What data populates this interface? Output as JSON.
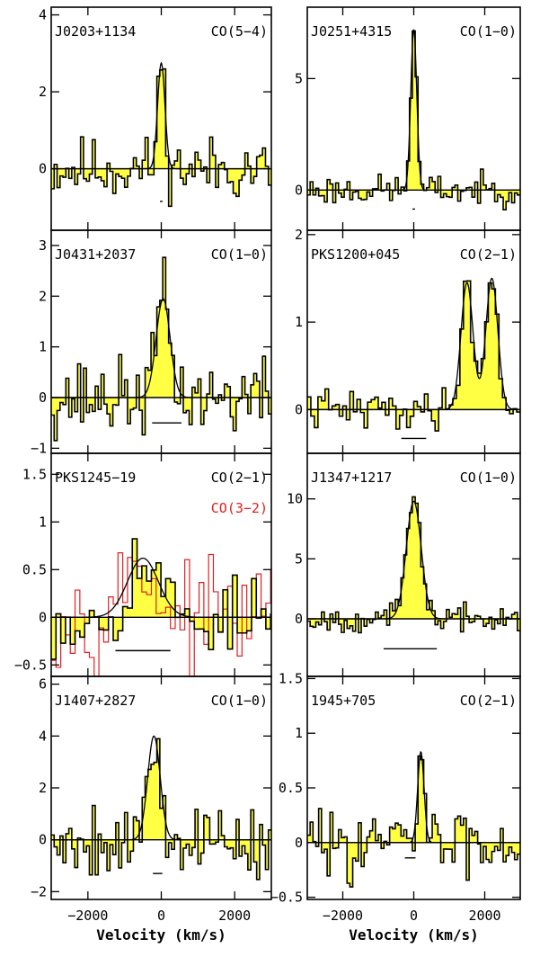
{
  "chart_data": [
    {
      "type": "area",
      "title": "J0203+1134",
      "line": "CO(5−4)",
      "xlim": [
        -3000,
        3000
      ],
      "ylim": [
        -1.6,
        4.2
      ],
      "yticks": [
        0,
        2,
        4
      ],
      "ytick_labels": [
        "0",
        "2",
        "4"
      ],
      "xticks": [
        -2000,
        0,
        2000
      ],
      "show_xtick_labels": false,
      "bin_width": 80,
      "fwhm_bar": {
        "x": 0,
        "y": -0.85,
        "half_width": 35
      },
      "gaussians": [
        {
          "amp": 2.75,
          "center": 0,
          "sigma": 100
        }
      ],
      "noise": 0.55,
      "seed": 11
    },
    {
      "type": "area",
      "title": "J0251+4315",
      "line": "CO(1−0)",
      "xlim": [
        -3000,
        3000
      ],
      "ylim": [
        -1.8,
        8.2
      ],
      "yticks": [
        0,
        5
      ],
      "ytick_labels": [
        "0",
        "5"
      ],
      "xticks": [
        -2000,
        0,
        2000
      ],
      "show_xtick_labels": false,
      "bin_width": 80,
      "fwhm_bar": {
        "x": 0,
        "y": -0.85,
        "half_width": 35
      },
      "gaussians": [
        {
          "amp": 7.2,
          "center": 0,
          "sigma": 85
        }
      ],
      "noise": 0.45,
      "seed": 23
    },
    {
      "type": "area",
      "title": "J0431+2037",
      "line": "CO(1−0)",
      "xlim": [
        -3000,
        3000
      ],
      "ylim": [
        -1.1,
        3.3
      ],
      "yticks": [
        -1,
        0,
        1,
        2,
        3
      ],
      "ytick_labels": [
        "−1",
        "0",
        "1",
        "2",
        "3"
      ],
      "xticks": [
        -2000,
        0,
        2000
      ],
      "show_xtick_labels": false,
      "bin_width": 80,
      "fwhm_bar": {
        "x": 150,
        "y": -0.5,
        "half_width": 400
      },
      "gaussians": [
        {
          "amp": 1.95,
          "center": 50,
          "sigma": 190
        }
      ],
      "noise": 0.5,
      "seed": 37
    },
    {
      "type": "area",
      "title": "PKS1200+045",
      "line": "CO(2−1)",
      "xlim": [
        -3000,
        3000
      ],
      "ylim": [
        -0.5,
        2.05
      ],
      "yticks": [
        0,
        1,
        2
      ],
      "ytick_labels": [
        "0",
        "1",
        "2"
      ],
      "xticks": [
        -2000,
        0,
        2000
      ],
      "show_xtick_labels": false,
      "bin_width": 100,
      "fwhm_bar": {
        "x": 0,
        "y": -0.33,
        "half_width": 350
      },
      "gaussians": [
        {
          "amp": 1.45,
          "center": 1500,
          "sigma": 170
        },
        {
          "amp": 1.5,
          "center": 2200,
          "sigma": 170
        }
      ],
      "noise": 0.15,
      "seed": 41
    },
    {
      "type": "area",
      "title": "PKS1245−19",
      "line": "CO(2−1)",
      "line2": "CO(3−2)",
      "xlim": [
        -3000,
        3000
      ],
      "ylim": [
        -0.62,
        1.72
      ],
      "yticks": [
        -0.5,
        0,
        0.5,
        1,
        1.5
      ],
      "ytick_labels": [
        "−0.5",
        "0",
        "0.5",
        "1",
        "1.5"
      ],
      "xticks": [
        -2000,
        0,
        2000
      ],
      "show_xtick_labels": false,
      "bin_width": 130,
      "fwhm_bar": {
        "x": -500,
        "y": -0.35,
        "half_width": 750
      },
      "gaussians": [
        {
          "amp": 0.62,
          "center": -500,
          "sigma": 420
        }
      ],
      "noise": 0.28,
      "seed": 53,
      "overlay": {
        "color": "#e02020",
        "noise": 0.33,
        "seed": 97,
        "gaussians": [
          {
            "amp": 0.55,
            "center": -600,
            "sigma": 420
          }
        ]
      }
    },
    {
      "type": "area",
      "title": "J1347+1217",
      "line": "CO(1−0)",
      "xlim": [
        -3000,
        3000
      ],
      "ylim": [
        -4.8,
        13.8
      ],
      "yticks": [
        0,
        5,
        10
      ],
      "ytick_labels": [
        "0",
        "5",
        "10"
      ],
      "xticks": [
        -2000,
        0,
        2000
      ],
      "show_xtick_labels": false,
      "bin_width": 80,
      "fwhm_bar": {
        "x": -100,
        "y": -2.5,
        "half_width": 750
      },
      "gaussians": [
        {
          "amp": 9.8,
          "center": 0,
          "sigma": 210
        }
      ],
      "noise": 0.7,
      "seed": 67
    },
    {
      "type": "area",
      "title": "J1407+2827",
      "line": "CO(1−0)",
      "xlim": [
        -3000,
        3000
      ],
      "ylim": [
        -2.3,
        6.3
      ],
      "yticks": [
        -2,
        0,
        2,
        4,
        6
      ],
      "ytick_labels": [
        "−2",
        "0",
        "2",
        "4",
        "6"
      ],
      "xticks": [
        -2000,
        0,
        2000
      ],
      "xtick_labels": [
        "−2000",
        "0",
        "2000"
      ],
      "show_xtick_labels": true,
      "xlabel": "Velocity (km/s)",
      "bin_width": 80,
      "fwhm_bar": {
        "x": -100,
        "y": -1.3,
        "half_width": 130
      },
      "gaussians": [
        {
          "amp": 4.0,
          "center": -200,
          "sigma": 170
        }
      ],
      "noise": 1.0,
      "seed": 79
    },
    {
      "type": "area",
      "title": "1945+705",
      "line": "CO(2−1)",
      "xlim": [
        -3000,
        3000
      ],
      "ylim": [
        -0.52,
        1.52
      ],
      "yticks": [
        -0.5,
        0,
        0.5,
        1,
        1.5
      ],
      "ytick_labels": [
        "−0.5",
        "0",
        "0.5",
        "1",
        "1.5"
      ],
      "xticks": [
        -2000,
        0,
        2000
      ],
      "xtick_labels": [
        "−2000",
        "0",
        "2000"
      ],
      "show_xtick_labels": true,
      "xlabel": "Velocity (km/s)",
      "bin_width": 80,
      "fwhm_bar": {
        "x": -100,
        "y": -0.14,
        "half_width": 150
      },
      "gaussians": [
        {
          "amp": 0.83,
          "center": 200,
          "sigma": 90
        }
      ],
      "noise": 0.2,
      "seed": 83
    }
  ]
}
